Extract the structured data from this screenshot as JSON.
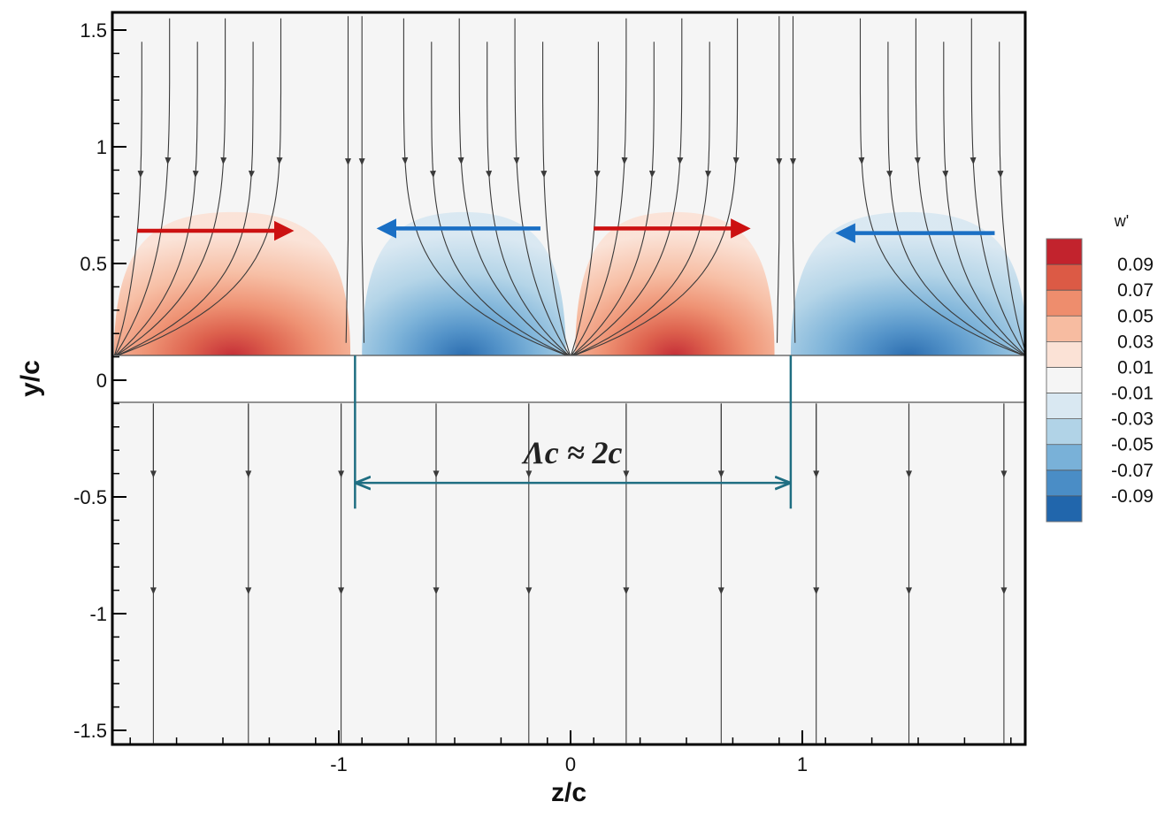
{
  "chart_data": {
    "type": "heatmap",
    "title": "",
    "xlabel": "z/c",
    "ylabel": "y/c",
    "xlim": [
      -1.97,
      1.97
    ],
    "ylim": [
      -1.56,
      1.56
    ],
    "x_ticks": [
      {
        "value": -1,
        "label": "-1"
      },
      {
        "value": 0,
        "label": "0"
      },
      {
        "value": 1,
        "label": "1"
      }
    ],
    "y_ticks": [
      {
        "value": 1.5,
        "label": "1.5"
      },
      {
        "value": 1,
        "label": "1"
      },
      {
        "value": 0.5,
        "label": "0.5"
      },
      {
        "value": 0,
        "label": "0"
      },
      {
        "value": -0.5,
        "label": "-0.5"
      },
      {
        "value": -1,
        "label": "-1"
      },
      {
        "value": -1.5,
        "label": "-1.5"
      }
    ],
    "body_extent_y": [
      -0.1,
      0.1
    ],
    "colorbar": {
      "title": "w'",
      "levels": [
        "0.09",
        "0.07",
        "0.05",
        "0.03",
        "0.01",
        "-0.01",
        "-0.03",
        "-0.05",
        "-0.07",
        "-0.09"
      ],
      "colors": [
        "#c2232d",
        "#dc5a45",
        "#ee8d6d",
        "#f7bca1",
        "#fbe2d6",
        "#f5f5f5",
        "#d9e8f2",
        "#b1d3e7",
        "#79b1d8",
        "#4a8dc6",
        "#2166ac"
      ]
    },
    "regions": [
      {
        "sign": "positive",
        "z_range": [
          -1.97,
          -0.95
        ],
        "peak": 0.09
      },
      {
        "sign": "negative",
        "z_range": [
          -0.9,
          -0.02
        ],
        "peak": -0.09
      },
      {
        "sign": "positive",
        "z_range": [
          0.02,
          0.88
        ],
        "peak": 0.09
      },
      {
        "sign": "negative",
        "z_range": [
          0.95,
          1.97
        ],
        "peak": -0.09
      }
    ],
    "arrows": [
      {
        "direction": "right",
        "color": "#cc1111",
        "y": 0.64,
        "z_from": -1.87,
        "z_to": -1.21
      },
      {
        "direction": "left",
        "color": "#1a6fc4",
        "y": 0.65,
        "z_from": -0.13,
        "z_to": -0.82
      },
      {
        "direction": "right",
        "color": "#cc1111",
        "y": 0.65,
        "z_from": 0.1,
        "z_to": 0.76
      },
      {
        "direction": "left",
        "color": "#1a6fc4",
        "y": 0.63,
        "z_from": 1.83,
        "z_to": 1.16
      }
    ],
    "wavelength_annotation": {
      "text": "Λc ≈ 2c",
      "z_from": -0.93,
      "z_to": 0.95,
      "y": -0.44
    }
  },
  "colors": {
    "background": "#f5f5f5",
    "streamline": "#3a3a3a",
    "dimension_line": "#1f6e82"
  }
}
